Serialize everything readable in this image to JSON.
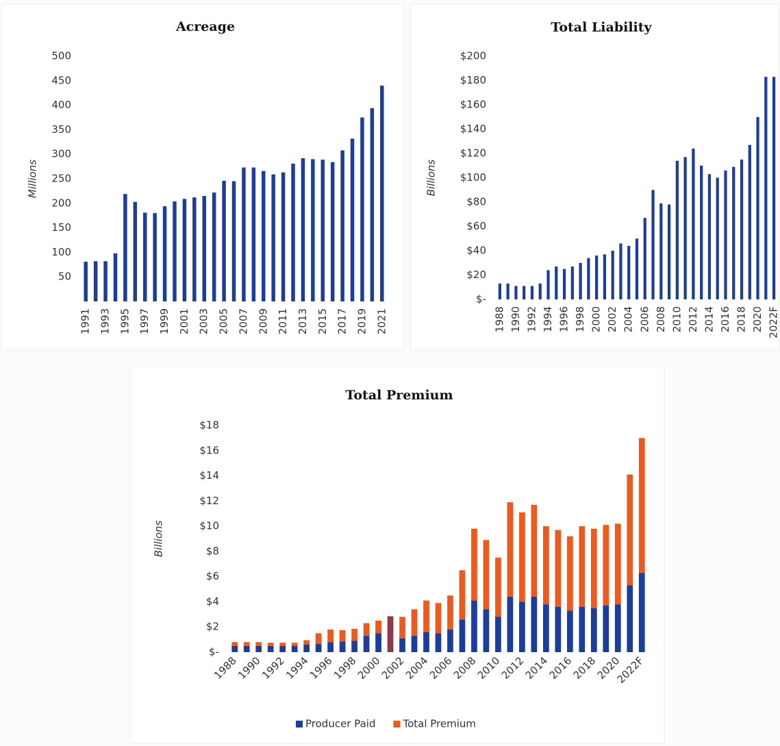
{
  "chart_data": [
    {
      "type": "bar",
      "title": "Acreage",
      "y_label": "Millions",
      "categories": [
        "1991",
        null,
        "1993",
        null,
        "1995",
        null,
        "1997",
        null,
        "1999",
        null,
        "2001",
        null,
        "2003",
        null,
        "2005",
        null,
        "2007",
        null,
        "2009",
        null,
        "2011",
        null,
        "2013",
        null,
        "2015",
        null,
        "2017",
        null,
        "2019",
        null,
        "2021"
      ],
      "values": [
        81,
        82,
        82,
        98,
        219,
        203,
        181,
        180,
        194,
        204,
        209,
        212,
        215,
        222,
        246,
        245,
        273,
        273,
        266,
        259,
        263,
        281,
        292,
        290,
        289,
        284,
        308,
        332,
        375,
        394,
        440
      ],
      "color": "#1c3d99",
      "ylim": [
        0,
        500
      ],
      "yticks": [
        50,
        100,
        150,
        200,
        250,
        300,
        350,
        400,
        450,
        500
      ],
      "grid": false
    },
    {
      "type": "bar",
      "title": "Total Liability",
      "y_label": "Billions",
      "categories": [
        "1988",
        null,
        "1990",
        null,
        "1992",
        null,
        "1994",
        null,
        "1996",
        null,
        "1998",
        null,
        "2000",
        null,
        "2002",
        null,
        "2004",
        null,
        "2006",
        null,
        "2008",
        null,
        "2010",
        null,
        "2012",
        null,
        "2014",
        null,
        "2016",
        null,
        "2018",
        null,
        "2020",
        null,
        "2022F"
      ],
      "values": [
        13,
        13,
        11,
        11,
        11,
        13,
        24,
        27,
        25,
        27,
        30,
        34,
        36,
        37,
        40,
        46,
        44,
        50,
        67,
        90,
        79,
        78,
        114,
        117,
        124,
        110,
        103,
        100,
        106,
        109,
        115,
        127,
        150,
        183,
        183
      ],
      "color": "#1c3d99",
      "ylim": [
        0,
        200
      ],
      "yticks": [
        {
          "value": 0,
          "label": "$-"
        },
        {
          "value": 20,
          "label": "$20"
        },
        {
          "value": 40,
          "label": "$40"
        },
        {
          "value": 60,
          "label": "$60"
        },
        {
          "value": 80,
          "label": "$80"
        },
        {
          "value": 100,
          "label": "$100"
        },
        {
          "value": 120,
          "label": "$120"
        },
        {
          "value": 140,
          "label": "$140"
        },
        {
          "value": 160,
          "label": "$160"
        },
        {
          "value": 180,
          "label": "$180"
        },
        {
          "value": 200,
          "label": "$200"
        }
      ],
      "grid": false
    },
    {
      "type": "stacked_bar",
      "title": "Total Premium",
      "y_label": "Billions",
      "categories": [
        "1988",
        null,
        "1990",
        null,
        "1992",
        null,
        "1994",
        null,
        "1996",
        null,
        "1998",
        null,
        "2000",
        null,
        "2002",
        null,
        "2004",
        null,
        "2006",
        null,
        "2008",
        null,
        "2010",
        null,
        "2012",
        null,
        "2014",
        null,
        "2016",
        null,
        "2018",
        null,
        "2020",
        null,
        "2022F"
      ],
      "series": [
        {
          "name": "Producer Paid",
          "color": "#1c3d99",
          "highlight": {
            "index": 13,
            "color": "#8b3a48"
          },
          "values": [
            0.5,
            0.5,
            0.5,
            0.5,
            0.5,
            0.5,
            0.6,
            0.65,
            0.8,
            0.85,
            0.9,
            1.3,
            1.5,
            2.85,
            1.1,
            1.3,
            1.6,
            1.5,
            1.8,
            2.6,
            4.1,
            3.4,
            2.8,
            4.4,
            4.0,
            4.4,
            3.8,
            3.6,
            3.3,
            3.6,
            3.5,
            3.7,
            3.8,
            5.3,
            6.3
          ]
        },
        {
          "name": "Total Premium",
          "color": "#ec5a1e",
          "values": [
            0.3,
            0.3,
            0.3,
            0.25,
            0.25,
            0.25,
            0.35,
            0.85,
            1.0,
            0.9,
            0.95,
            1.0,
            1.0,
            null,
            1.7,
            2.1,
            2.5,
            2.4,
            2.7,
            3.9,
            5.7,
            5.5,
            4.7,
            7.5,
            7.1,
            7.3,
            6.2,
            6.1,
            5.9,
            6.4,
            6.3,
            6.4,
            6.4,
            8.8,
            10.7
          ]
        }
      ],
      "ylim": [
        0,
        18
      ],
      "yticks": [
        {
          "value": 0,
          "label": "$-"
        },
        {
          "value": 2,
          "label": "$2"
        },
        {
          "value": 4,
          "label": "$4"
        },
        {
          "value": 6,
          "label": "$6"
        },
        {
          "value": 8,
          "label": "$8"
        },
        {
          "value": 10,
          "label": "$10"
        },
        {
          "value": 12,
          "label": "$12"
        },
        {
          "value": 14,
          "label": "$14"
        },
        {
          "value": 16,
          "label": "$16"
        },
        {
          "value": 18,
          "label": "$18"
        }
      ],
      "grid": false,
      "legend": "bottom"
    }
  ]
}
